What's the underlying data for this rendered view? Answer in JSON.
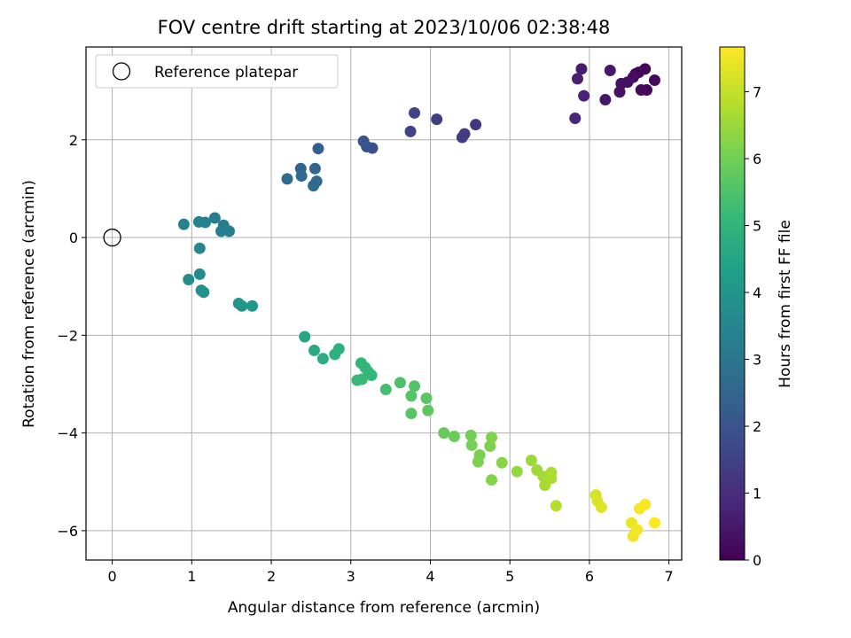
{
  "chart_data": {
    "type": "scatter",
    "title": "FOV centre drift starting at 2023/10/06 02:38:48",
    "xlabel": "Angular distance from reference (arcmin)",
    "ylabel": "Rotation from reference (arcmin)",
    "xlim": [
      -0.33,
      7.16
    ],
    "ylim": [
      -6.6,
      3.9
    ],
    "x_ticks": [
      "0",
      "1",
      "2",
      "3",
      "4",
      "5",
      "6",
      "7"
    ],
    "y_ticks": [
      "−6",
      "−4",
      "−2",
      "0",
      "2"
    ],
    "grid": true,
    "legend": {
      "position": "top-left",
      "entries": [
        "Reference platepar"
      ]
    },
    "reference_point": {
      "x": 0,
      "y": 0
    },
    "colorbar": {
      "label": "Hours from first FF file",
      "range": [
        0,
        7.67
      ],
      "ticks": [
        "0",
        "1",
        "2",
        "3",
        "4",
        "5",
        "6",
        "7"
      ],
      "colormap": "viridis"
    },
    "points": [
      {
        "x": 6.58,
        "y": 3.35,
        "t": 0.05
      },
      {
        "x": 6.62,
        "y": 3.38,
        "t": 0.08
      },
      {
        "x": 6.7,
        "y": 3.45,
        "t": 0.1
      },
      {
        "x": 6.72,
        "y": 3.02,
        "t": 0.12
      },
      {
        "x": 6.82,
        "y": 3.22,
        "t": 0.18
      },
      {
        "x": 6.65,
        "y": 3.02,
        "t": 0.22
      },
      {
        "x": 6.55,
        "y": 3.28,
        "t": 0.25
      },
      {
        "x": 6.48,
        "y": 3.18,
        "t": 0.3
      },
      {
        "x": 6.4,
        "y": 3.15,
        "t": 0.35
      },
      {
        "x": 6.38,
        "y": 2.98,
        "t": 0.4
      },
      {
        "x": 6.2,
        "y": 2.82,
        "t": 0.45
      },
      {
        "x": 6.26,
        "y": 3.42,
        "t": 0.5
      },
      {
        "x": 5.9,
        "y": 3.45,
        "t": 0.6
      },
      {
        "x": 5.85,
        "y": 3.25,
        "t": 0.68
      },
      {
        "x": 5.93,
        "y": 2.9,
        "t": 0.75
      },
      {
        "x": 5.82,
        "y": 2.44,
        "t": 0.85
      },
      {
        "x": 4.57,
        "y": 2.31,
        "t": 1.25
      },
      {
        "x": 4.43,
        "y": 2.12,
        "t": 1.32
      },
      {
        "x": 4.4,
        "y": 2.05,
        "t": 1.38
      },
      {
        "x": 4.08,
        "y": 2.42,
        "t": 1.45
      },
      {
        "x": 3.8,
        "y": 2.55,
        "t": 1.55
      },
      {
        "x": 3.75,
        "y": 2.17,
        "t": 1.62
      },
      {
        "x": 3.27,
        "y": 1.83,
        "t": 1.9
      },
      {
        "x": 3.2,
        "y": 1.86,
        "t": 1.95
      },
      {
        "x": 3.16,
        "y": 1.97,
        "t": 2.0
      },
      {
        "x": 2.59,
        "y": 1.82,
        "t": 2.35
      },
      {
        "x": 2.37,
        "y": 1.41,
        "t": 2.45
      },
      {
        "x": 2.55,
        "y": 1.41,
        "t": 2.5
      },
      {
        "x": 2.57,
        "y": 1.15,
        "t": 2.55
      },
      {
        "x": 2.53,
        "y": 1.06,
        "t": 2.6
      },
      {
        "x": 2.38,
        "y": 1.26,
        "t": 2.62
      },
      {
        "x": 2.2,
        "y": 1.2,
        "t": 2.65
      },
      {
        "x": 1.29,
        "y": 0.4,
        "t": 3.2
      },
      {
        "x": 1.4,
        "y": 0.25,
        "t": 3.25
      },
      {
        "x": 1.47,
        "y": 0.13,
        "t": 3.3
      },
      {
        "x": 1.37,
        "y": 0.13,
        "t": 3.32
      },
      {
        "x": 1.17,
        "y": 0.31,
        "t": 3.35
      },
      {
        "x": 1.09,
        "y": 0.32,
        "t": 3.38
      },
      {
        "x": 0.9,
        "y": 0.27,
        "t": 3.42
      },
      {
        "x": 1.1,
        "y": -0.22,
        "t": 3.6
      },
      {
        "x": 1.1,
        "y": -0.75,
        "t": 3.7
      },
      {
        "x": 0.96,
        "y": -0.86,
        "t": 3.75
      },
      {
        "x": 1.12,
        "y": -1.08,
        "t": 3.8
      },
      {
        "x": 1.15,
        "y": -1.12,
        "t": 3.85
      },
      {
        "x": 1.59,
        "y": -1.35,
        "t": 4.0
      },
      {
        "x": 1.63,
        "y": -1.4,
        "t": 4.05
      },
      {
        "x": 1.76,
        "y": -1.4,
        "t": 4.1
      },
      {
        "x": 2.42,
        "y": -2.03,
        "t": 4.55
      },
      {
        "x": 2.54,
        "y": -2.31,
        "t": 4.65
      },
      {
        "x": 2.65,
        "y": -2.48,
        "t": 4.75
      },
      {
        "x": 2.8,
        "y": -2.39,
        "t": 4.85
      },
      {
        "x": 2.85,
        "y": -2.28,
        "t": 4.9
      },
      {
        "x": 3.13,
        "y": -2.57,
        "t": 5.0
      },
      {
        "x": 3.18,
        "y": -2.66,
        "t": 5.05
      },
      {
        "x": 3.22,
        "y": -2.75,
        "t": 5.1
      },
      {
        "x": 3.26,
        "y": -2.82,
        "t": 5.12
      },
      {
        "x": 3.08,
        "y": -2.92,
        "t": 5.15
      },
      {
        "x": 3.14,
        "y": -2.9,
        "t": 5.18
      },
      {
        "x": 3.44,
        "y": -3.11,
        "t": 5.35
      },
      {
        "x": 3.62,
        "y": -2.97,
        "t": 5.45
      },
      {
        "x": 3.8,
        "y": -3.04,
        "t": 5.55
      },
      {
        "x": 3.76,
        "y": -3.24,
        "t": 5.58
      },
      {
        "x": 3.76,
        "y": -3.6,
        "t": 5.62
      },
      {
        "x": 3.95,
        "y": -3.29,
        "t": 5.68
      },
      {
        "x": 3.97,
        "y": -3.54,
        "t": 5.72
      },
      {
        "x": 4.17,
        "y": -4.0,
        "t": 5.85
      },
      {
        "x": 4.3,
        "y": -4.07,
        "t": 5.9
      },
      {
        "x": 4.51,
        "y": -4.05,
        "t": 6.0
      },
      {
        "x": 4.52,
        "y": -4.25,
        "t": 6.05
      },
      {
        "x": 4.62,
        "y": -4.45,
        "t": 6.1
      },
      {
        "x": 4.6,
        "y": -4.59,
        "t": 6.12
      },
      {
        "x": 4.75,
        "y": -4.27,
        "t": 6.15
      },
      {
        "x": 4.77,
        "y": -4.09,
        "t": 6.18
      },
      {
        "x": 4.77,
        "y": -4.96,
        "t": 6.22
      },
      {
        "x": 4.9,
        "y": -4.61,
        "t": 6.28
      },
      {
        "x": 5.09,
        "y": -4.79,
        "t": 6.4
      },
      {
        "x": 5.27,
        "y": -4.56,
        "t": 6.5
      },
      {
        "x": 5.34,
        "y": -4.76,
        "t": 6.55
      },
      {
        "x": 5.42,
        "y": -4.89,
        "t": 6.6
      },
      {
        "x": 5.44,
        "y": -5.07,
        "t": 6.65
      },
      {
        "x": 5.52,
        "y": -4.81,
        "t": 6.7
      },
      {
        "x": 5.52,
        "y": -4.93,
        "t": 6.72
      },
      {
        "x": 5.58,
        "y": -5.49,
        "t": 6.8
      },
      {
        "x": 6.08,
        "y": -5.27,
        "t": 7.2
      },
      {
        "x": 6.1,
        "y": -5.39,
        "t": 7.25
      },
      {
        "x": 6.15,
        "y": -5.52,
        "t": 7.3
      },
      {
        "x": 6.53,
        "y": -5.84,
        "t": 7.45
      },
      {
        "x": 6.55,
        "y": -6.11,
        "t": 7.5
      },
      {
        "x": 6.6,
        "y": -5.98,
        "t": 7.55
      },
      {
        "x": 6.63,
        "y": -5.55,
        "t": 7.58
      },
      {
        "x": 6.7,
        "y": -5.46,
        "t": 7.62
      },
      {
        "x": 6.82,
        "y": -5.84,
        "t": 7.67
      }
    ]
  },
  "colors": {
    "grid": "#b0b0b0",
    "axes": "#000000",
    "legend_border": "#cccccc",
    "viridis_stops": [
      "#440154",
      "#482878",
      "#3e4989",
      "#31688e",
      "#26828e",
      "#1f9e89",
      "#35b779",
      "#6ece58",
      "#b5de2b",
      "#fde725"
    ]
  }
}
